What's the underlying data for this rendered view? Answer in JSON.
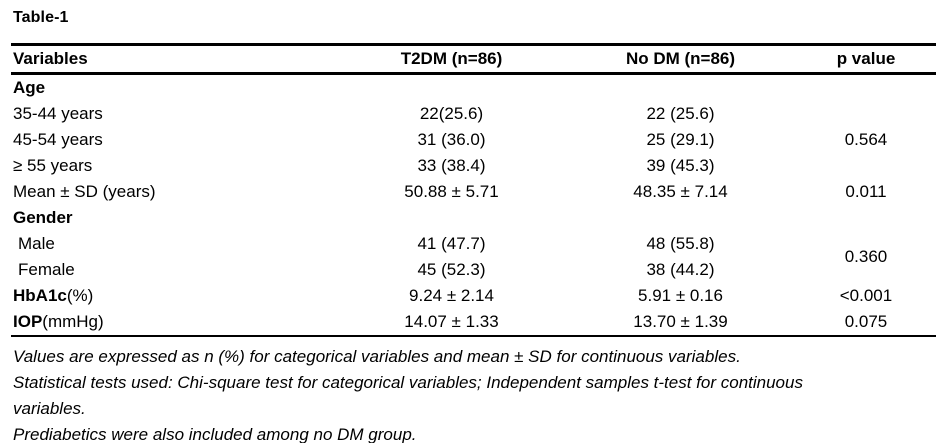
{
  "title": "Table-1",
  "table": {
    "columns": [
      "Variables",
      "T2DM (n=86)",
      "No DM (n=86)",
      "p value"
    ],
    "rows": [
      {
        "label": "Age",
        "t2dm": "",
        "nodm": "",
        "p": ""
      },
      {
        "label": "35-44 years",
        "t2dm": "22(25.6)",
        "nodm": "22 (25.6)",
        "p": "0.564"
      },
      {
        "label": "45-54 years",
        "t2dm": "31 (36.0)",
        "nodm": "25 (29.1)"
      },
      {
        "label": "≥ 55 years",
        "t2dm": "33 (38.4)",
        "nodm": "39 (45.3)"
      },
      {
        "label": "Mean ± SD (years)",
        "t2dm": "50.88 ± 5.71",
        "nodm": "48.35 ± 7.14",
        "p": "0.011"
      },
      {
        "label": "Gender",
        "t2dm": "",
        "nodm": "",
        "p": ""
      },
      {
        "label": "Male",
        "t2dm": "41 (47.7)",
        "nodm": "48 (55.8)",
        "p": "0.360"
      },
      {
        "label": "Female",
        "t2dm": "45 (52.3)",
        "nodm": "38 (44.2)"
      },
      {
        "label": "HbA1c",
        "label_suffix": "(%)",
        "t2dm": "9.24 ± 2.14",
        "nodm": "5.91 ± 0.16",
        "p": "<0.001"
      },
      {
        "label": "IOP",
        "label_suffix": "(mmHg)",
        "t2dm": "14.07 ± 1.33",
        "nodm": "13.70 ± 1.39",
        "p": "0.075"
      }
    ]
  },
  "footnotes": [
    "Values are expressed as n (%) for categorical variables and mean ± SD for continuous variables.",
    "Statistical tests used: Chi-square test for categorical variables; Independent samples t-test for continuous",
    "variables.",
    "Prediabetics were also included among no DM group."
  ],
  "colors": {
    "text": "#000000",
    "background": "#ffffff",
    "border": "#000000"
  }
}
